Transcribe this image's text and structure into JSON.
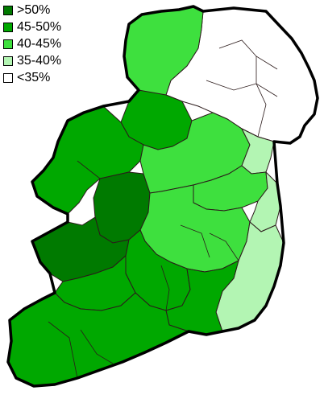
{
  "legend": [
    {
      "label": ">50%",
      "color": "#007a00"
    },
    {
      "label": "45-50%",
      "color": "#00a800"
    },
    {
      "label": "40-45%",
      "color": "#3ee03e"
    },
    {
      "label": "35-40%",
      "color": "#b3f5b3"
    },
    {
      "label": "<35%",
      "color": "#ffffff"
    }
  ],
  "regions": [
    {
      "id": "donegal",
      "band": "40-45%"
    },
    {
      "id": "northern-ireland",
      "band": "<35%"
    },
    {
      "id": "sligo-leitrim",
      "band": "45-50%"
    },
    {
      "id": "mayo",
      "band": "45-50%"
    },
    {
      "id": "roscommon",
      "band": ">50%"
    },
    {
      "id": "galway-west",
      "band": ">50%"
    },
    {
      "id": "longford-westmeath",
      "band": "40-45%"
    },
    {
      "id": "louth",
      "band": "35-40%"
    },
    {
      "id": "meath",
      "band": "40-45%"
    },
    {
      "id": "dublin",
      "band": "35-40%"
    },
    {
      "id": "kildare-offaly-laois",
      "band": "40-45%"
    },
    {
      "id": "wicklow-wexford",
      "band": "35-40%"
    },
    {
      "id": "tipperary",
      "band": "45-50%"
    },
    {
      "id": "clare-limerick",
      "band": "45-50%"
    },
    {
      "id": "kerry-cork",
      "band": "45-50%"
    },
    {
      "id": "waterford-kilkenny",
      "band": "45-50%"
    }
  ]
}
